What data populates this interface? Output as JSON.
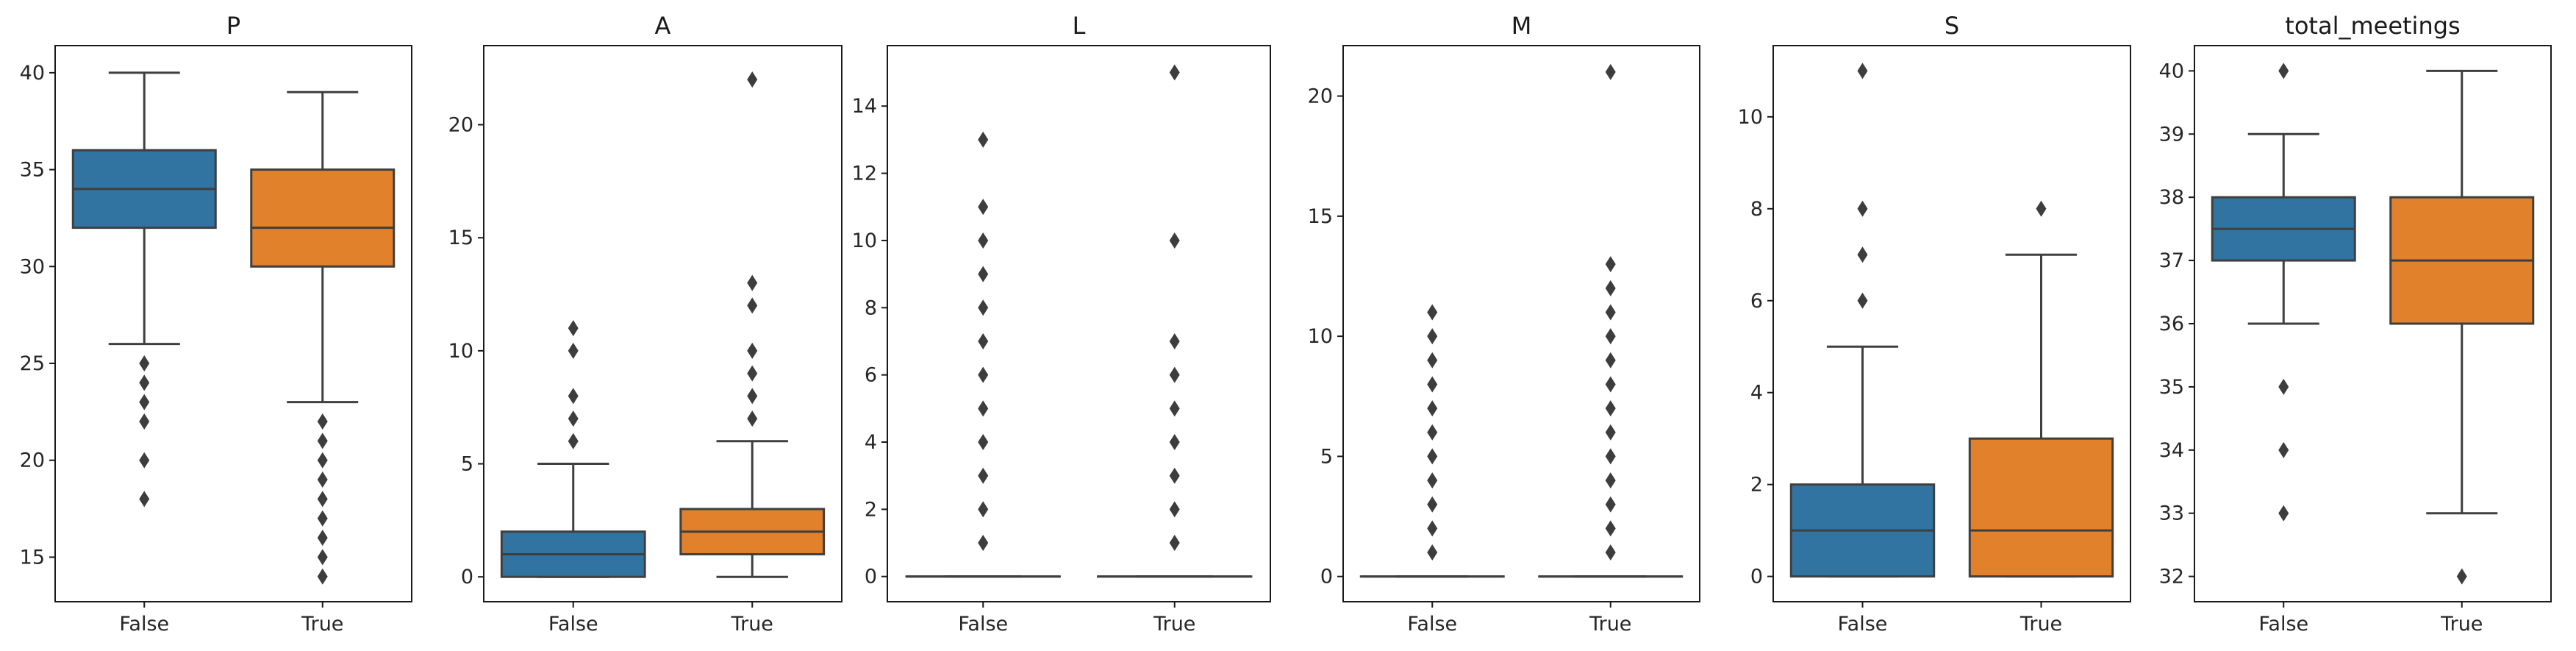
{
  "chart_data": [
    {
      "type": "box",
      "title": "P",
      "categories": [
        "False",
        "True"
      ],
      "ylim": [
        12.7,
        41.4
      ],
      "yticks": [
        15,
        20,
        25,
        30,
        35,
        40
      ],
      "boxes": [
        {
          "q1": 32,
          "median": 34,
          "q3": 36,
          "whisker_low": 26,
          "whisker_high": 40,
          "fliers": [
            25,
            24,
            23,
            22,
            20,
            18
          ]
        },
        {
          "q1": 30,
          "median": 32,
          "q3": 35,
          "whisker_low": 23,
          "whisker_high": 39,
          "fliers": [
            22,
            21,
            20,
            19,
            18,
            17,
            16,
            15,
            14
          ]
        }
      ]
    },
    {
      "type": "box",
      "title": "A",
      "categories": [
        "False",
        "True"
      ],
      "ylim": [
        -1.1,
        23.5
      ],
      "yticks": [
        0,
        5,
        10,
        15,
        20
      ],
      "boxes": [
        {
          "q1": 0,
          "median": 1,
          "q3": 2,
          "whisker_low": 0,
          "whisker_high": 5,
          "fliers": [
            6,
            7,
            8,
            10,
            11
          ]
        },
        {
          "q1": 1,
          "median": 2,
          "q3": 3,
          "whisker_low": 0,
          "whisker_high": 6,
          "fliers": [
            7,
            8,
            9,
            10,
            12,
            13,
            22
          ]
        }
      ]
    },
    {
      "type": "box",
      "title": "L",
      "categories": [
        "False",
        "True"
      ],
      "ylim": [
        -0.75,
        15.8
      ],
      "yticks": [
        0,
        2,
        4,
        6,
        8,
        10,
        12,
        14
      ],
      "boxes": [
        {
          "q1": 0,
          "median": 0,
          "q3": 0,
          "whisker_low": 0,
          "whisker_high": 0,
          "fliers": [
            1,
            2,
            3,
            4,
            5,
            6,
            7,
            8,
            9,
            10,
            11,
            13
          ]
        },
        {
          "q1": 0,
          "median": 0,
          "q3": 0,
          "whisker_low": 0,
          "whisker_high": 0,
          "fliers": [
            1,
            2,
            3,
            4,
            5,
            6,
            7,
            10,
            15
          ]
        }
      ]
    },
    {
      "type": "box",
      "title": "M",
      "categories": [
        "False",
        "True"
      ],
      "ylim": [
        -1.05,
        22.1
      ],
      "yticks": [
        0,
        5,
        10,
        15,
        20
      ],
      "boxes": [
        {
          "q1": 0,
          "median": 0,
          "q3": 0,
          "whisker_low": 0,
          "whisker_high": 0,
          "fliers": [
            1,
            2,
            3,
            4,
            5,
            6,
            7,
            8,
            9,
            10,
            11
          ]
        },
        {
          "q1": 0,
          "median": 0,
          "q3": 0,
          "whisker_low": 0,
          "whisker_high": 0,
          "fliers": [
            1,
            2,
            3,
            4,
            5,
            6,
            7,
            8,
            9,
            10,
            11,
            12,
            13,
            21
          ]
        }
      ]
    },
    {
      "type": "box",
      "title": "S",
      "categories": [
        "False",
        "True"
      ],
      "ylim": [
        -0.55,
        11.55
      ],
      "yticks": [
        0,
        2,
        4,
        6,
        8,
        10
      ],
      "boxes": [
        {
          "q1": 0,
          "median": 1,
          "q3": 2,
          "whisker_low": 0,
          "whisker_high": 5,
          "fliers": [
            6,
            7,
            8,
            11
          ]
        },
        {
          "q1": 0,
          "median": 1,
          "q3": 3,
          "whisker_low": 0,
          "whisker_high": 7,
          "fliers": [
            8
          ]
        }
      ]
    },
    {
      "type": "box",
      "title": "total_meetings",
      "categories": [
        "False",
        "True"
      ],
      "ylim": [
        31.6,
        40.4
      ],
      "yticks": [
        32,
        33,
        34,
        35,
        36,
        37,
        38,
        39,
        40
      ],
      "boxes": [
        {
          "q1": 37,
          "median": 37.5,
          "q3": 38,
          "whisker_low": 36,
          "whisker_high": 39,
          "fliers": [
            35,
            34,
            33,
            40
          ]
        },
        {
          "q1": 36,
          "median": 37,
          "q3": 38,
          "whisker_low": 33,
          "whisker_high": 40,
          "fliers": [
            32
          ]
        }
      ]
    }
  ],
  "colors": {
    "False": "#3274a1",
    "True": "#e1812c"
  }
}
